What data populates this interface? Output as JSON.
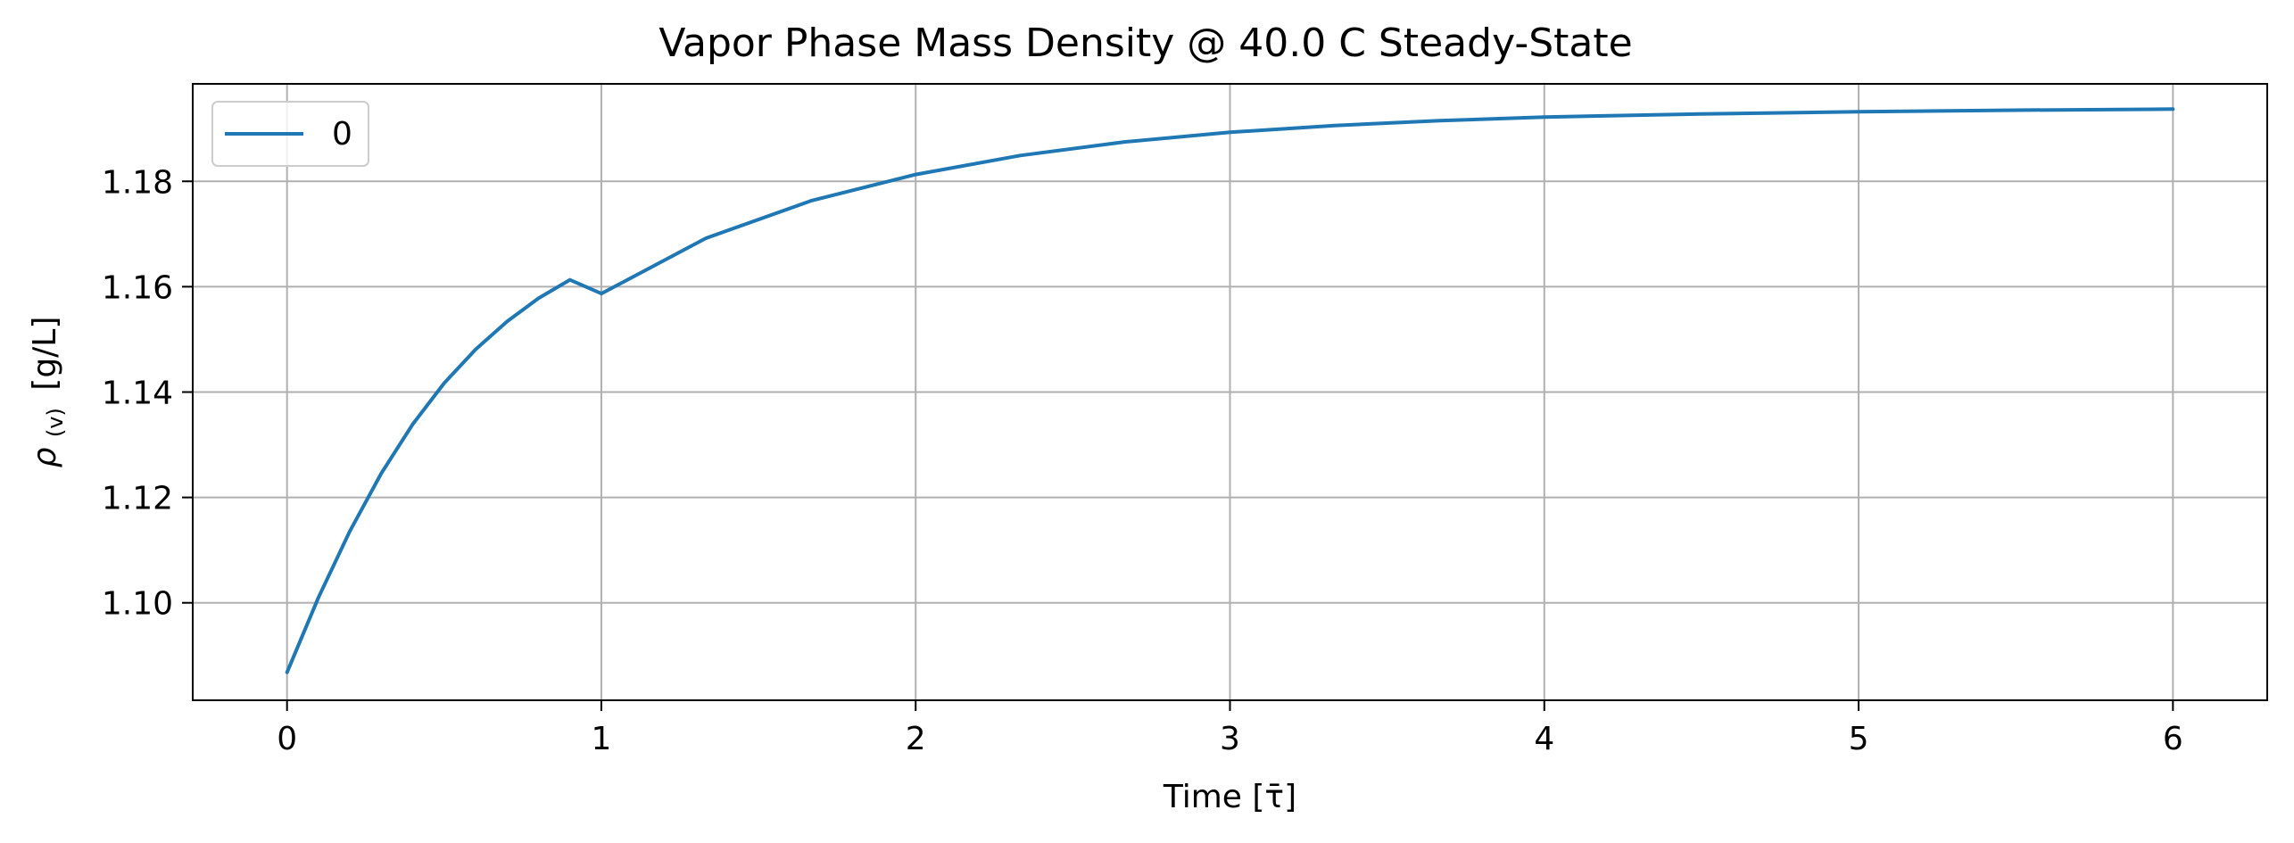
{
  "chart_data": {
    "type": "line",
    "title": "Vapor Phase Mass Density @ 40.0 C Steady-State",
    "xlabel": "Time [τ̄]",
    "ylabel": {
      "symbol": "ρ",
      "subscript": "(v)",
      "unit": "[g/L]"
    },
    "xlim": [
      -0.3,
      6.3
    ],
    "ylim": [
      1.0815,
      1.1985
    ],
    "xticks": [
      0,
      1,
      2,
      3,
      4,
      5,
      6
    ],
    "xtick_labels": [
      "0",
      "1",
      "2",
      "3",
      "4",
      "5",
      "6"
    ],
    "yticks": [
      1.1,
      1.12,
      1.14,
      1.16,
      1.18
    ],
    "ytick_labels": [
      "1.10",
      "1.12",
      "1.14",
      "1.16",
      "1.18"
    ],
    "grid": true,
    "legend": {
      "position": "top-left"
    },
    "colors": {
      "series": "#1f77b4",
      "grid": "#b0b0b0"
    },
    "series": [
      {
        "name": "0",
        "x": [
          0,
          0.1,
          0.2,
          0.3,
          0.4,
          0.5,
          0.6,
          0.7,
          0.8,
          0.9,
          1.0,
          1.333,
          1.667,
          2.0,
          2.333,
          2.667,
          3.0,
          3.333,
          3.667,
          4.0,
          4.5,
          5.0,
          5.5,
          6.0
        ],
        "values": [
          1.0868,
          1.101,
          1.1136,
          1.1246,
          1.1339,
          1.1417,
          1.1481,
          1.1534,
          1.1578,
          1.1613,
          1.1587,
          1.1692,
          1.1763,
          1.1813,
          1.1849,
          1.1875,
          1.1893,
          1.1906,
          1.1915,
          1.1922,
          1.1928,
          1.1932,
          1.1935,
          1.1937
        ]
      }
    ]
  }
}
